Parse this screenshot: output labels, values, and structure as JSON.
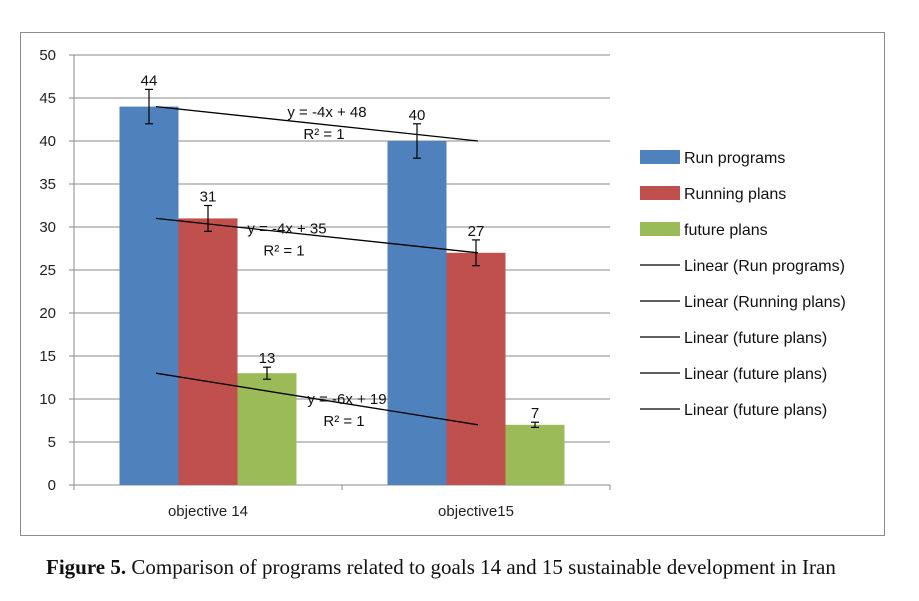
{
  "chart_data": {
    "type": "bar",
    "categories": [
      "objective 14",
      "objective15"
    ],
    "series": [
      {
        "name": "Run programs",
        "values": [
          44,
          40
        ],
        "color": "#4f81bd",
        "error": [
          2,
          2
        ]
      },
      {
        "name": "Running plans",
        "values": [
          31,
          27
        ],
        "color": "#c0504d",
        "error": [
          1.5,
          1.5
        ]
      },
      {
        "name": "future plans",
        "values": [
          13,
          7
        ],
        "color": "#9bbb59",
        "error": [
          0.7,
          0.3
        ]
      }
    ],
    "data_labels": [
      [
        "44",
        "40"
      ],
      [
        "31",
        "27"
      ],
      [
        "13",
        "7"
      ]
    ],
    "trendlines": [
      {
        "name": "Linear (Run programs)",
        "series": "Run programs",
        "start": 44,
        "end": 40,
        "equation": "y = -4x + 48",
        "r2": "R² = 1"
      },
      {
        "name": "Linear (Running plans)",
        "series": "Running plans",
        "start": 31,
        "end": 27,
        "equation": "y = -4x + 35",
        "r2": "R² = 1"
      },
      {
        "name": "Linear (future plans)",
        "series": "future plans",
        "start": 13,
        "end": 7,
        "equation": "y = -6x + 19",
        "r2": "R² = 1"
      }
    ],
    "legend": [
      "Run programs",
      "Running plans",
      "future plans",
      "Linear (Run programs)",
      "Linear (Running plans)",
      "Linear (future plans)",
      "Linear (future plans)",
      "Linear (future plans)"
    ],
    "legend_position": "right",
    "y_ticks": [
      "0",
      "5",
      "10",
      "15",
      "20",
      "25",
      "30",
      "35",
      "40",
      "45",
      "50"
    ],
    "ylim": [
      0,
      50
    ],
    "grid": true,
    "title": "",
    "xlabel": "",
    "ylabel": ""
  },
  "caption": {
    "label": "Figure 5.",
    "text": " Comparison of programs related to goals 14 and 15 sustainable development in Iran"
  }
}
